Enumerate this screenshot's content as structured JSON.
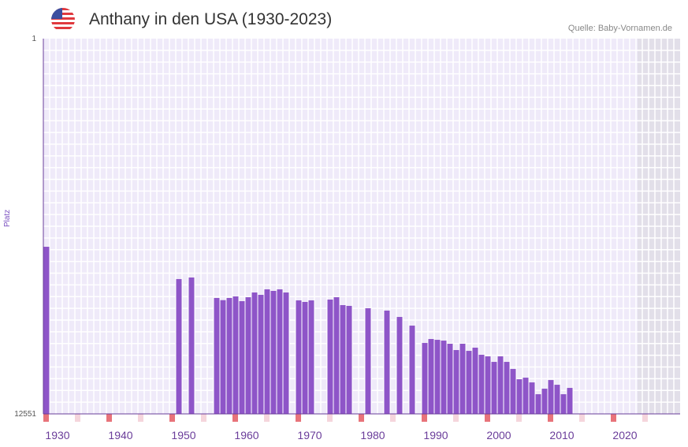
{
  "header": {
    "title": "Anthany in den USA (1930-2023)",
    "source": "Quelle: Baby-Vornamen.de",
    "flag_icon": "us-flag-icon"
  },
  "colors": {
    "bar": "#8e55c8",
    "axis": "#6a3d9a",
    "marker_dark": "#e8737a",
    "marker_light": "#f5d5dc",
    "plot_bg": "#efeaf9",
    "nodata_bg": "#e2dfe9"
  },
  "chart_data": {
    "type": "bar",
    "title": "Anthany in den USA (1930-2023)",
    "ylabel": "Platz",
    "xlabel": "",
    "ylim": [
      1,
      12551
    ],
    "y_inverted": true,
    "y_tick_labels": [
      "1",
      "12551"
    ],
    "x_range": [
      1928,
      2028
    ],
    "x_tick_labels": [
      "1930",
      "1940",
      "1950",
      "1960",
      "1970",
      "1980",
      "1990",
      "2000",
      "2010",
      "2020"
    ],
    "nodata_range": [
      2022,
      2028
    ],
    "series": [
      {
        "name": "Platz",
        "points": [
          [
            1928,
            6962
          ],
          [
            1949,
            8042
          ],
          [
            1951,
            7990
          ],
          [
            1955,
            8675
          ],
          [
            1956,
            8747
          ],
          [
            1957,
            8675
          ],
          [
            1958,
            8623
          ],
          [
            1959,
            8781
          ],
          [
            1960,
            8649
          ],
          [
            1961,
            8491
          ],
          [
            1962,
            8570
          ],
          [
            1963,
            8386
          ],
          [
            1964,
            8438
          ],
          [
            1965,
            8386
          ],
          [
            1966,
            8491
          ],
          [
            1968,
            8755
          ],
          [
            1969,
            8807
          ],
          [
            1970,
            8755
          ],
          [
            1973,
            8728
          ],
          [
            1974,
            8649
          ],
          [
            1975,
            8913
          ],
          [
            1976,
            8939
          ],
          [
            1979,
            9018
          ],
          [
            1982,
            9097
          ],
          [
            1984,
            9309
          ],
          [
            1986,
            9599
          ],
          [
            1988,
            10179
          ],
          [
            1989,
            10047
          ],
          [
            1990,
            10074
          ],
          [
            1991,
            10100
          ],
          [
            1992,
            10205
          ],
          [
            1993,
            10416
          ],
          [
            1994,
            10205
          ],
          [
            1995,
            10443
          ],
          [
            1996,
            10337
          ],
          [
            1997,
            10574
          ],
          [
            1998,
            10627
          ],
          [
            1999,
            10812
          ],
          [
            2000,
            10627
          ],
          [
            2001,
            10812
          ],
          [
            2002,
            11049
          ],
          [
            2003,
            11392
          ],
          [
            2004,
            11340
          ],
          [
            2005,
            11498
          ],
          [
            2006,
            11893
          ],
          [
            2007,
            11708
          ],
          [
            2008,
            11419
          ],
          [
            2009,
            11577
          ],
          [
            2010,
            11893
          ],
          [
            2011,
            11682
          ]
        ]
      }
    ]
  }
}
